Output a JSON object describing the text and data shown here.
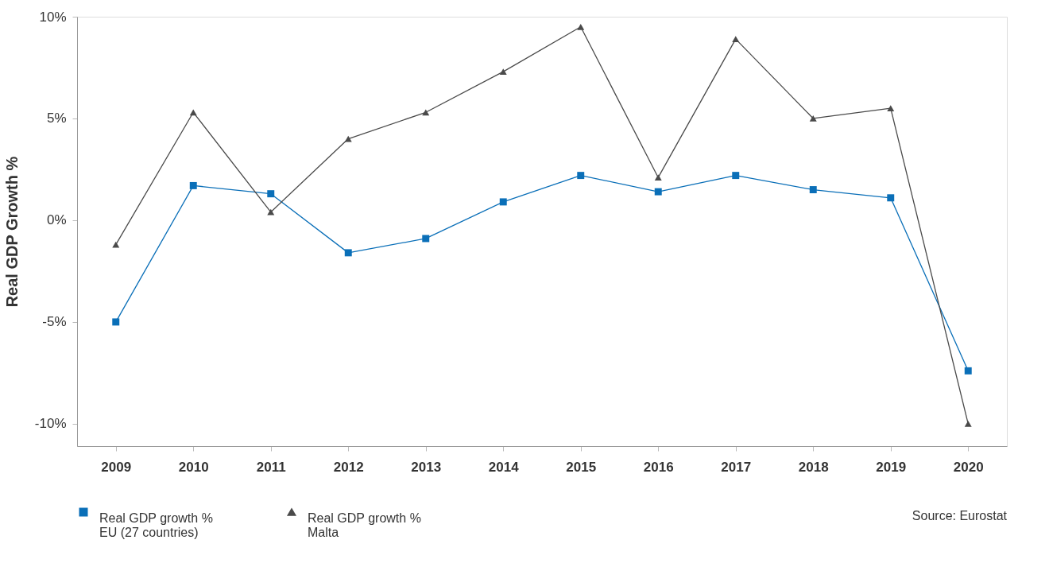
{
  "chart_data": {
    "type": "line",
    "ylabel": "Real GDP Growth %",
    "categories": [
      "2009",
      "2010",
      "2011",
      "2012",
      "2013",
      "2014",
      "2015",
      "2016",
      "2017",
      "2018",
      "2019",
      "2020"
    ],
    "series": [
      {
        "name": "Real GDP growth %\nEU (27 countries)",
        "color": "#0a6fb8",
        "marker": "square",
        "values": [
          -5.0,
          1.7,
          1.3,
          -1.6,
          -0.9,
          0.9,
          2.2,
          1.4,
          2.2,
          1.5,
          1.1,
          -7.4
        ]
      },
      {
        "name": "Real GDP growth %\nMalta",
        "color": "#4a4a4a",
        "marker": "triangle",
        "values": [
          -1.2,
          5.3,
          0.4,
          4.0,
          5.3,
          7.3,
          9.5,
          2.1,
          8.9,
          5.0,
          5.5,
          -10.0
        ]
      }
    ],
    "ylim": [
      -11.1,
      10
    ],
    "yticks": [
      {
        "value": 10,
        "label": "10%"
      },
      {
        "value": 5,
        "label": "5%"
      },
      {
        "value": 0,
        "label": "0%"
      },
      {
        "value": -5,
        "label": "-5%"
      },
      {
        "value": -10,
        "label": "-10%"
      }
    ],
    "grid": false,
    "legend": "bottom left",
    "line_style": "solid",
    "annotations": [
      "Source: Eurostat"
    ]
  }
}
